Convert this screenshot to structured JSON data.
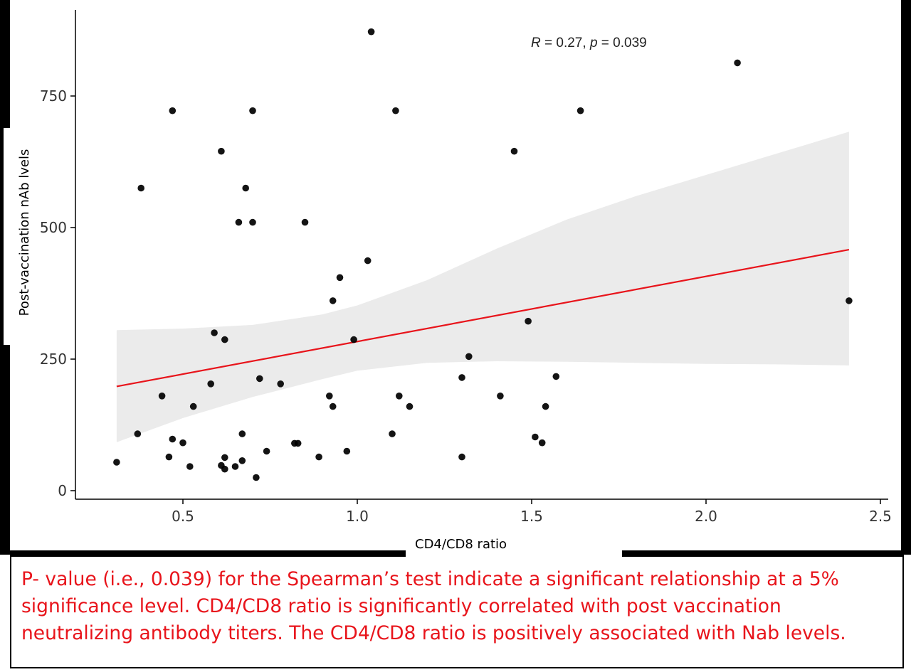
{
  "chart_data": {
    "type": "scatter",
    "xlabel": "CD4/CD8 ratio",
    "ylabel": "Post-vaccination nAb lvels",
    "xlim": [
      0.2,
      2.52
    ],
    "ylim": [
      -20,
      910
    ],
    "x_ticks": [
      0.5,
      1.0,
      1.5,
      2.0,
      2.5
    ],
    "x_tick_labels": [
      "0.5",
      "1.0",
      "1.5",
      "2.0",
      "2.5"
    ],
    "y_ticks": [
      0,
      250,
      500,
      750
    ],
    "y_tick_labels": [
      "0",
      "250",
      "500",
      "750"
    ],
    "annotation": {
      "r_symbol": "R",
      "r_text": " = 0.27, ",
      "p_symbol": "p",
      "p_text": " = 0.039"
    },
    "regression": {
      "x": [
        0.31,
        2.41
      ],
      "y": [
        198,
        458
      ],
      "color": "#e8141b"
    },
    "confidence_band": {
      "x": [
        0.31,
        0.5,
        0.7,
        0.9,
        1.0,
        1.2,
        1.4,
        1.6,
        1.8,
        2.0,
        2.2,
        2.41
      ],
      "upper": [
        305,
        308,
        315,
        335,
        352,
        400,
        460,
        515,
        560,
        600,
        640,
        682
      ],
      "lower": [
        92,
        138,
        178,
        212,
        228,
        243,
        246,
        245,
        243,
        241,
        240,
        238
      ],
      "color": "#ebebeb"
    },
    "grid": false,
    "points": [
      {
        "x": 0.31,
        "y": 54
      },
      {
        "x": 0.37,
        "y": 108
      },
      {
        "x": 0.38,
        "y": 575
      },
      {
        "x": 0.44,
        "y": 180
      },
      {
        "x": 0.46,
        "y": 64
      },
      {
        "x": 0.47,
        "y": 98
      },
      {
        "x": 0.47,
        "y": 722
      },
      {
        "x": 0.5,
        "y": 91
      },
      {
        "x": 0.52,
        "y": 46
      },
      {
        "x": 0.53,
        "y": 160
      },
      {
        "x": 0.58,
        "y": 203
      },
      {
        "x": 0.59,
        "y": 300
      },
      {
        "x": 0.61,
        "y": 645
      },
      {
        "x": 0.61,
        "y": 48
      },
      {
        "x": 0.62,
        "y": 287
      },
      {
        "x": 0.62,
        "y": 63
      },
      {
        "x": 0.62,
        "y": 41
      },
      {
        "x": 0.65,
        "y": 46
      },
      {
        "x": 0.66,
        "y": 510
      },
      {
        "x": 0.67,
        "y": 57
      },
      {
        "x": 0.67,
        "y": 108
      },
      {
        "x": 0.68,
        "y": 575
      },
      {
        "x": 0.7,
        "y": 722
      },
      {
        "x": 0.7,
        "y": 510
      },
      {
        "x": 0.71,
        "y": 25
      },
      {
        "x": 0.72,
        "y": 213
      },
      {
        "x": 0.74,
        "y": 75
      },
      {
        "x": 0.78,
        "y": 203
      },
      {
        "x": 0.82,
        "y": 90
      },
      {
        "x": 0.83,
        "y": 90
      },
      {
        "x": 0.85,
        "y": 510
      },
      {
        "x": 0.89,
        "y": 64
      },
      {
        "x": 0.92,
        "y": 180
      },
      {
        "x": 0.93,
        "y": 361
      },
      {
        "x": 0.93,
        "y": 160
      },
      {
        "x": 0.95,
        "y": 405
      },
      {
        "x": 0.97,
        "y": 75
      },
      {
        "x": 0.99,
        "y": 287
      },
      {
        "x": 1.03,
        "y": 437
      },
      {
        "x": 1.04,
        "y": 872
      },
      {
        "x": 1.1,
        "y": 108
      },
      {
        "x": 1.11,
        "y": 722
      },
      {
        "x": 1.12,
        "y": 180
      },
      {
        "x": 1.15,
        "y": 160
      },
      {
        "x": 1.3,
        "y": 64
      },
      {
        "x": 1.3,
        "y": 215
      },
      {
        "x": 1.32,
        "y": 255
      },
      {
        "x": 1.41,
        "y": 180
      },
      {
        "x": 1.45,
        "y": 645
      },
      {
        "x": 1.49,
        "y": 322
      },
      {
        "x": 1.51,
        "y": 102
      },
      {
        "x": 1.53,
        "y": 91
      },
      {
        "x": 1.54,
        "y": 160
      },
      {
        "x": 1.57,
        "y": 217
      },
      {
        "x": 1.64,
        "y": 722
      },
      {
        "x": 2.09,
        "y": 813
      },
      {
        "x": 2.41,
        "y": 361
      }
    ]
  },
  "caption": {
    "line1": "P- value (i.e., 0.039) for the Spearman’s test indicate a significant relationship at a 5%",
    "line2": "significance level. CD4/CD8 ratio is significantly correlated with post vaccination",
    "line3": "neutralizing antibody titers. The CD4/CD8 ratio is positively associated with Nab levels."
  }
}
